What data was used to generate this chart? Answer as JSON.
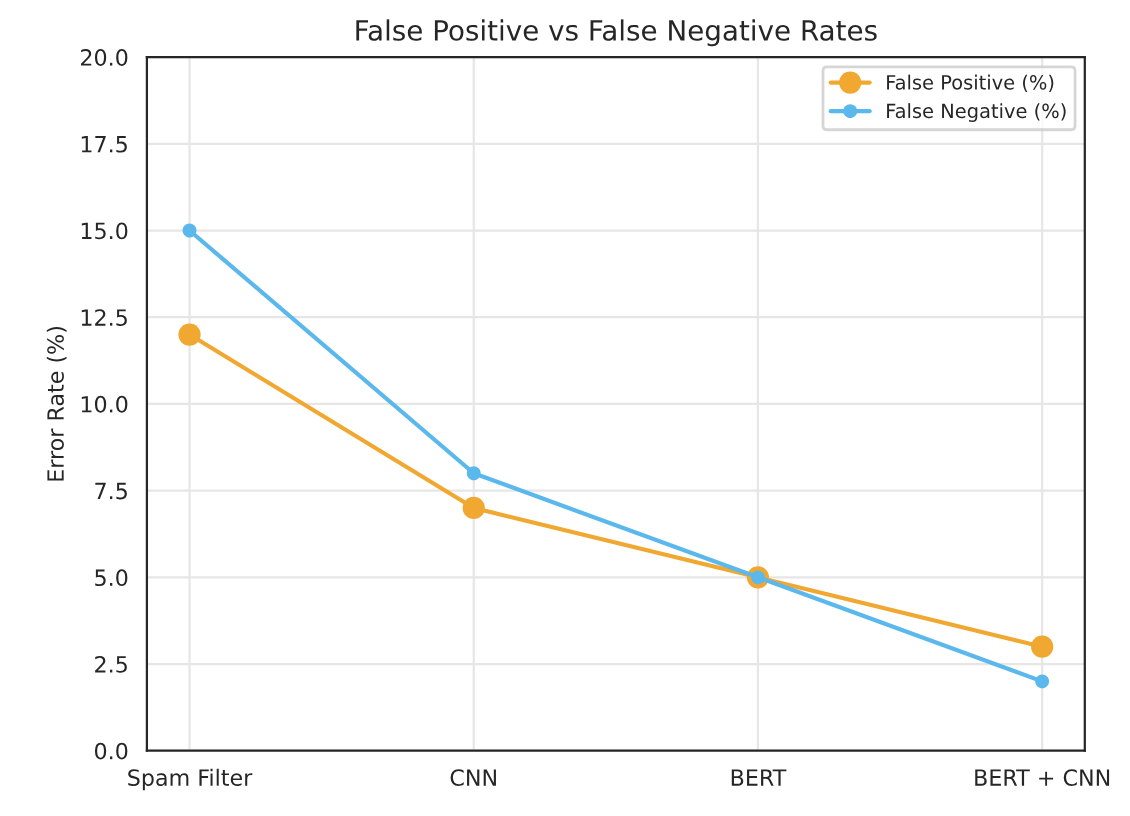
{
  "chart_data": {
    "type": "line",
    "title": "False Positive vs False Negative Rates",
    "ylabel": "Error Rate (%)",
    "categories": [
      "Spam Filter",
      "CNN",
      "BERT",
      "BERT + CNN"
    ],
    "series": [
      {
        "name": "False Positive (%)",
        "color": "#f0a830",
        "values": [
          12,
          7,
          5,
          3
        ]
      },
      {
        "name": "False Negative (%)",
        "color": "#5bb8ec",
        "values": [
          15,
          8,
          5,
          2
        ]
      }
    ],
    "ylim": [
      0,
      20
    ],
    "yticks": [
      {
        "value": 0,
        "label": "0.0"
      },
      2.5,
      {
        "value": 5,
        "label": "5.0"
      },
      7.5,
      {
        "value": 10,
        "label": "10.0"
      },
      12.5,
      {
        "value": 15,
        "label": "15.0"
      },
      17.5,
      {
        "value": 20,
        "label": "20.0"
      }
    ],
    "grid": true,
    "legend": "upper right",
    "marker": "circle",
    "line_style": "solid"
  }
}
